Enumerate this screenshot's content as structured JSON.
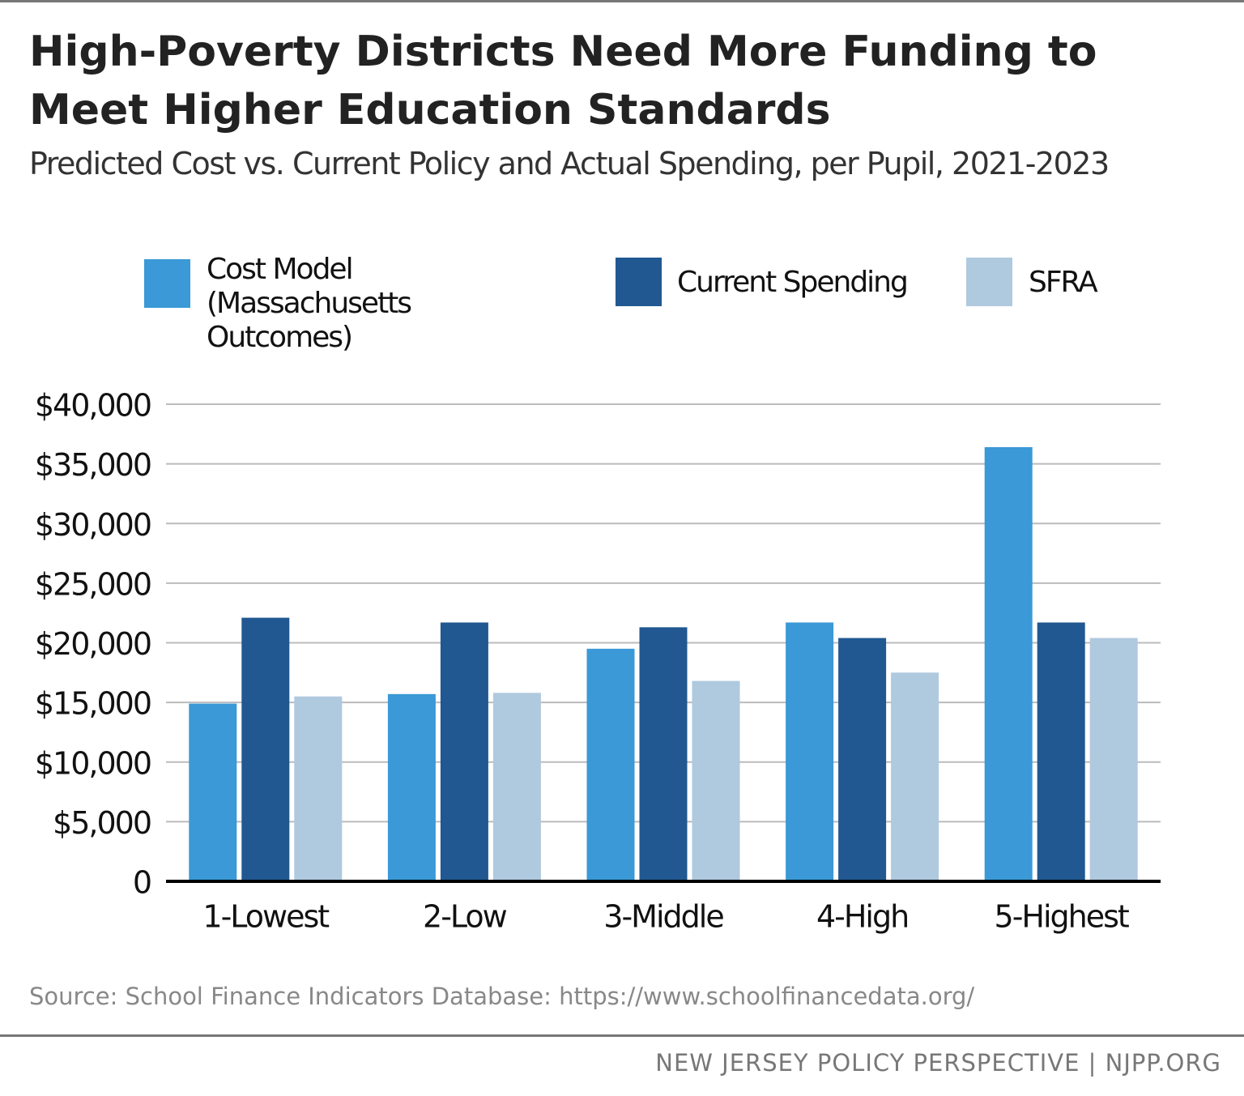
{
  "chart_data": {
    "type": "bar",
    "title": "High-Poverty Districts Need More Funding to Meet Higher Education Standards",
    "subtitle": "Predicted Cost vs. Current Policy and Actual Spending, per Pupil, 2021-2023",
    "categories": [
      "1-Lowest",
      "2-Low",
      "3-Middle",
      "4-High",
      "5-Highest"
    ],
    "series": [
      {
        "name": "Cost Model (Massachusetts Outcomes)",
        "color": "#3a99d6",
        "values": [
          14900,
          15700,
          19500,
          21700,
          36400
        ]
      },
      {
        "name": "Current Spending",
        "color": "#215891",
        "values": [
          22100,
          21700,
          21300,
          20400,
          21700
        ]
      },
      {
        "name": "SFRA",
        "color": "#afc9df",
        "values": [
          15500,
          15800,
          16800,
          17500,
          20400
        ]
      }
    ],
    "ylim": [
      0,
      40000
    ],
    "yticks": [
      0,
      {
        "value": 5000,
        "label": "$5,000"
      },
      {
        "value": 10000,
        "label": "$10,000"
      },
      {
        "value": 15000,
        "label": "$15,000"
      },
      {
        "value": 20000,
        "label": "$20,000"
      },
      {
        "value": 25000,
        "label": "$25,000"
      },
      {
        "value": 30000,
        "label": "$30,000"
      },
      {
        "value": 35000,
        "label": "$35,000"
      },
      {
        "value": 40000,
        "label": "$40,000"
      }
    ],
    "grid": true,
    "source": "Source: School Finance Indicators Database: https://www.schoolfinancedata.org/",
    "footer": "NEW JERSEY POLICY PERSPECTIVE | NJPP.ORG"
  }
}
